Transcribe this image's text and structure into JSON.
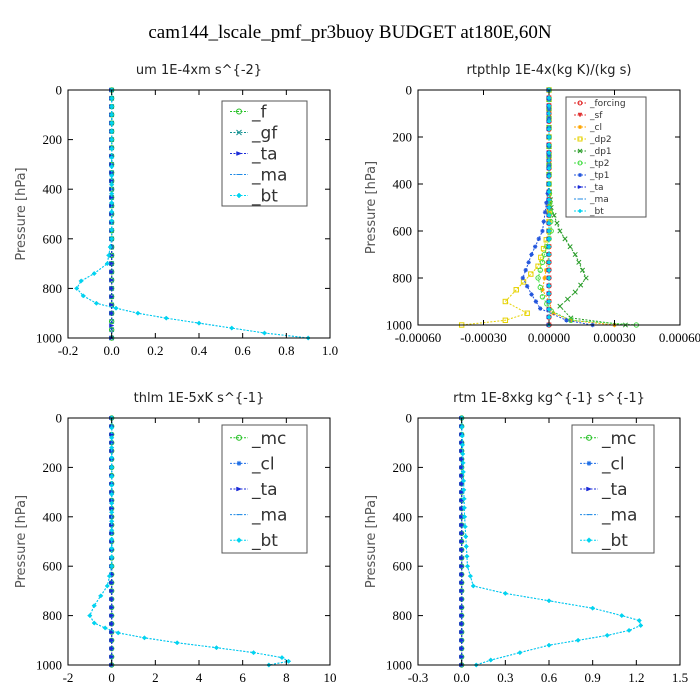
{
  "suptitle": "cam144_lscale_pmf_pr3buoy  BUDGET at180E,60N",
  "chart_data": [
    {
      "type": "line",
      "title": "um  1E-4xm s^{-2}",
      "ylabel": "Pressure [hPa]",
      "xlabel": "",
      "xlim": [
        -0.2,
        1.0
      ],
      "ylim": [
        1000,
        0
      ],
      "x_ticks": [
        -0.2,
        0.0,
        0.2,
        0.4,
        0.6,
        0.8,
        1.0
      ],
      "x_tick_labels": [
        "-0.2",
        "0.0",
        "0.2",
        "0.4",
        "0.6",
        "0.8",
        "1.0"
      ],
      "y_ticks": [
        0,
        200,
        400,
        600,
        800,
        1000
      ],
      "legend_position": "top-right",
      "series": [
        {
          "name": "_f",
          "color": "#22c022",
          "marker": "circle",
          "x": [
            0,
            0,
            0,
            0,
            0,
            0,
            0,
            0,
            0,
            0,
            0
          ],
          "y": [
            0,
            100,
            200,
            300,
            400,
            500,
            600,
            700,
            800,
            900,
            1000
          ]
        },
        {
          "name": "_gf",
          "color": "#0f8f8f",
          "marker": "x",
          "x": [
            0,
            0,
            0,
            0,
            0,
            0,
            0,
            0,
            0,
            0,
            0
          ],
          "y": [
            0,
            100,
            200,
            300,
            400,
            500,
            600,
            700,
            800,
            900,
            1000
          ]
        },
        {
          "name": "_ta",
          "color": "#1a2bd8",
          "marker": "arrow",
          "x": [
            0,
            0,
            0,
            0,
            0,
            0,
            0,
            0,
            0,
            0,
            0,
            0
          ],
          "y": [
            0,
            100,
            200,
            300,
            400,
            500,
            600,
            700,
            800,
            900,
            950,
            1000
          ]
        },
        {
          "name": "_ma",
          "color": "#1e8ae6",
          "marker": "dash",
          "x": [
            0,
            0,
            0,
            -0.02,
            -0.08,
            -0.14,
            -0.16,
            -0.13,
            -0.07,
            0.02,
            0.12,
            0.25,
            0.4,
            0.55,
            0.7,
            0.9
          ],
          "y": [
            0,
            200,
            600,
            700,
            740,
            770,
            800,
            830,
            860,
            880,
            900,
            920,
            940,
            960,
            980,
            1000
          ]
        },
        {
          "name": "_bt",
          "color": "#00d4f0",
          "marker": "diamond",
          "x": [
            0,
            0,
            0,
            -0.02,
            -0.08,
            -0.14,
            -0.16,
            -0.13,
            -0.07,
            0.02,
            0.12,
            0.25,
            0.4,
            0.55,
            0.7,
            0.9
          ],
          "y": [
            0,
            200,
            600,
            700,
            740,
            770,
            800,
            830,
            860,
            880,
            900,
            920,
            940,
            960,
            980,
            1000
          ]
        }
      ]
    },
    {
      "type": "line",
      "title": "rtpthlp  1E-4x(kg K)/(kg s)",
      "ylabel": "Pressure [hPa]",
      "xlabel": "",
      "xlim": [
        -0.0006,
        0.0006
      ],
      "ylim": [
        1000,
        0
      ],
      "x_ticks": [
        -0.0006,
        -0.0003,
        0.0,
        0.0003,
        0.0006
      ],
      "x_tick_labels": [
        "-0.00060",
        "-0.00030",
        "0.00000",
        "0.00030",
        "0.00060"
      ],
      "y_ticks": [
        0,
        200,
        400,
        600,
        800,
        1000
      ],
      "legend_position": "top-right",
      "series": [
        {
          "name": "_forcing",
          "color": "#e02020",
          "marker": "circle",
          "x": [
            0,
            0,
            0,
            0,
            0,
            0,
            0,
            0,
            0,
            0,
            0
          ],
          "y": [
            0,
            100,
            200,
            300,
            400,
            500,
            600,
            700,
            800,
            900,
            1000
          ]
        },
        {
          "name": "_sf",
          "color": "#e03030",
          "marker": "triangle",
          "x": [
            0,
            0,
            0,
            0,
            0,
            0,
            0,
            0,
            0,
            0,
            0
          ],
          "y": [
            0,
            100,
            200,
            300,
            400,
            500,
            600,
            700,
            800,
            900,
            1000
          ]
        },
        {
          "name": "_cl",
          "color": "#ffa500",
          "marker": "star",
          "x": [
            0,
            0,
            0,
            0,
            0,
            -2e-05,
            -3e-05,
            0,
            2e-05,
            0.0001,
            0.0003
          ],
          "y": [
            0,
            200,
            400,
            600,
            700,
            800,
            850,
            900,
            950,
            980,
            1000
          ]
        },
        {
          "name": "_dp2",
          "color": "#e6d200",
          "marker": "square",
          "x": [
            0,
            0,
            0,
            0,
            -5e-05,
            -0.00015,
            -0.0002,
            -0.0001,
            -0.0002,
            -0.0004
          ],
          "y": [
            0,
            200,
            400,
            600,
            750,
            850,
            900,
            950,
            980,
            1000
          ]
        },
        {
          "name": "_dp1",
          "color": "#2a9d2a",
          "marker": "x",
          "x": [
            0,
            0,
            0,
            1e-05,
            5e-05,
            0.00012,
            0.00017,
            0.00012,
            5e-05,
            0.0001,
            0.00035
          ],
          "y": [
            0,
            200,
            400,
            500,
            600,
            700,
            800,
            860,
            920,
            970,
            1000
          ]
        },
        {
          "name": "_tp2",
          "color": "#44dd44",
          "marker": "circle",
          "x": [
            0,
            0,
            0,
            1e-05,
            -2e-05,
            -5e-05,
            -3e-05,
            1e-05,
            0.0001,
            0.0004
          ],
          "y": [
            0,
            200,
            400,
            600,
            700,
            800,
            880,
            940,
            980,
            1000
          ]
        },
        {
          "name": "_tp1",
          "color": "#2255dd",
          "marker": "star",
          "x": [
            0,
            0,
            0,
            -3e-05,
            -8e-05,
            -0.00012,
            -8e-05,
            -4e-05,
            8e-05,
            0.0002
          ],
          "y": [
            0,
            200,
            400,
            600,
            700,
            800,
            870,
            930,
            980,
            1000
          ]
        },
        {
          "name": "_ta",
          "color": "#1a2bd8",
          "marker": "arrow",
          "x": [
            0,
            0,
            0,
            0,
            0,
            0,
            0,
            0,
            0,
            0,
            0
          ],
          "y": [
            0,
            100,
            200,
            300,
            400,
            500,
            600,
            700,
            800,
            900,
            1000
          ]
        },
        {
          "name": "_ma",
          "color": "#1e8ae6",
          "marker": "dash",
          "x": [
            0,
            0,
            0,
            0,
            0,
            0,
            0,
            0,
            0,
            0,
            0
          ],
          "y": [
            0,
            100,
            200,
            300,
            400,
            500,
            600,
            700,
            800,
            900,
            1000
          ]
        },
        {
          "name": "_bt",
          "color": "#00d4f0",
          "marker": "diamond",
          "x": [
            0,
            0,
            0,
            0,
            0,
            0,
            0,
            0,
            0,
            0,
            0
          ],
          "y": [
            0,
            100,
            200,
            300,
            400,
            500,
            600,
            700,
            800,
            900,
            1000
          ]
        }
      ]
    },
    {
      "type": "line",
      "title": "thlm  1E-5xK s^{-1}",
      "ylabel": "Pressure [hPa]",
      "xlabel": "",
      "xlim": [
        -2,
        10
      ],
      "ylim": [
        1000,
        0
      ],
      "x_ticks": [
        -2,
        0,
        2,
        4,
        6,
        8,
        10
      ],
      "x_tick_labels": [
        "-2",
        "0",
        "2",
        "4",
        "6",
        "8",
        "10"
      ],
      "y_ticks": [
        0,
        200,
        400,
        600,
        800,
        1000
      ],
      "legend_position": "top-right",
      "series": [
        {
          "name": "_mc",
          "color": "#22c022",
          "marker": "circle",
          "x": [
            0,
            0,
            0,
            0,
            0,
            0,
            0,
            0,
            0,
            0,
            0
          ],
          "y": [
            0,
            100,
            200,
            300,
            400,
            500,
            600,
            700,
            800,
            900,
            1000
          ]
        },
        {
          "name": "_cl",
          "color": "#1e6ee6",
          "marker": "star",
          "x": [
            0,
            0,
            0,
            0,
            0,
            0,
            0,
            0,
            0,
            0,
            0
          ],
          "y": [
            0,
            100,
            200,
            300,
            400,
            500,
            600,
            700,
            800,
            900,
            1000
          ]
        },
        {
          "name": "_ta",
          "color": "#1a2bd8",
          "marker": "arrow",
          "x": [
            0,
            0,
            0,
            0,
            0,
            0,
            0,
            0,
            0,
            0,
            0
          ],
          "y": [
            0,
            100,
            200,
            300,
            400,
            500,
            600,
            700,
            800,
            900,
            1000
          ]
        },
        {
          "name": "_ma",
          "color": "#1e8ae6",
          "marker": "dash",
          "x": [
            0,
            0,
            0,
            -0.2,
            -0.5,
            -0.8,
            -1.0,
            -0.8,
            -0.3,
            0.3,
            1.5,
            3,
            4.8,
            6.5,
            7.8,
            8.1,
            7.2
          ],
          "y": [
            0,
            200,
            600,
            680,
            720,
            760,
            800,
            830,
            850,
            870,
            890,
            910,
            930,
            950,
            970,
            985,
            1000
          ]
        },
        {
          "name": "_bt",
          "color": "#00d4f0",
          "marker": "diamond",
          "x": [
            0,
            0,
            0,
            -0.2,
            -0.5,
            -0.8,
            -1.0,
            -0.8,
            -0.3,
            0.3,
            1.5,
            3,
            4.8,
            6.5,
            7.8,
            8.1,
            7.2
          ],
          "y": [
            0,
            200,
            600,
            680,
            720,
            760,
            800,
            830,
            850,
            870,
            890,
            910,
            930,
            950,
            970,
            985,
            1000
          ]
        }
      ]
    },
    {
      "type": "line",
      "title": "rtm  1E-8xkg kg^{-1} s^{-1}",
      "ylabel": "Pressure [hPa]",
      "xlabel": "",
      "xlim": [
        -0.3,
        1.5
      ],
      "ylim": [
        1000,
        0
      ],
      "x_ticks": [
        -0.3,
        0.0,
        0.3,
        0.6,
        0.9,
        1.2,
        1.5
      ],
      "x_tick_labels": [
        "-0.3",
        "0.0",
        "0.3",
        "0.6",
        "0.9",
        "1.2",
        "1.5"
      ],
      "y_ticks": [
        0,
        200,
        400,
        600,
        800,
        1000
      ],
      "legend_position": "top-right",
      "series": [
        {
          "name": "_mc",
          "color": "#22c022",
          "marker": "circle",
          "x": [
            0,
            0,
            0,
            0,
            0,
            0,
            0,
            0,
            0,
            0,
            0
          ],
          "y": [
            0,
            100,
            200,
            300,
            400,
            500,
            600,
            700,
            800,
            900,
            1000
          ]
        },
        {
          "name": "_cl",
          "color": "#1e6ee6",
          "marker": "star",
          "x": [
            0,
            0,
            0,
            0,
            0,
            0,
            0,
            0,
            0,
            0,
            0
          ],
          "y": [
            0,
            100,
            200,
            300,
            400,
            500,
            600,
            700,
            800,
            900,
            1000
          ]
        },
        {
          "name": "_ta",
          "color": "#1a2bd8",
          "marker": "arrow",
          "x": [
            0,
            0,
            0,
            0,
            0,
            0,
            0,
            0,
            0,
            0,
            0
          ],
          "y": [
            0,
            100,
            200,
            300,
            400,
            500,
            600,
            700,
            800,
            900,
            1000
          ]
        },
        {
          "name": "_ma",
          "color": "#1e8ae6",
          "marker": "dash",
          "x": [
            0,
            0.02,
            0.04,
            0.08,
            0.3,
            0.6,
            0.9,
            1.1,
            1.22,
            1.23,
            1.15,
            1.0,
            0.8,
            0.6,
            0.4,
            0.2,
            0.1
          ],
          "y": [
            0,
            400,
            600,
            680,
            710,
            740,
            770,
            800,
            820,
            840,
            860,
            880,
            900,
            920,
            950,
            980,
            1000
          ]
        },
        {
          "name": "_bt",
          "color": "#00d4f0",
          "marker": "diamond",
          "x": [
            0,
            0.02,
            0.04,
            0.08,
            0.3,
            0.6,
            0.9,
            1.1,
            1.22,
            1.23,
            1.15,
            1.0,
            0.8,
            0.6,
            0.4,
            0.2,
            0.1
          ],
          "y": [
            0,
            400,
            600,
            680,
            710,
            740,
            770,
            800,
            820,
            840,
            860,
            880,
            900,
            920,
            950,
            980,
            1000
          ]
        }
      ]
    }
  ]
}
